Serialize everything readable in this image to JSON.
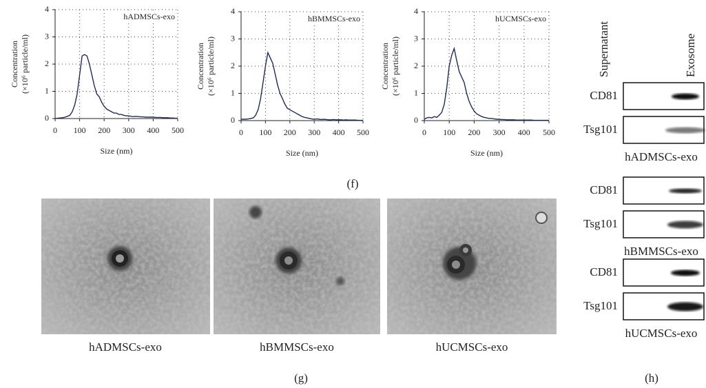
{
  "chart_data": [
    {
      "type": "line",
      "title": "hADMSCs-exo",
      "xlabel": "Size (nm)",
      "ylabel": [
        "Concentration",
        "(×10⁶ particle/ml)"
      ],
      "color": "#1f2a5a",
      "grid": true,
      "x": [
        0,
        10,
        20,
        30,
        40,
        50,
        60,
        70,
        80,
        90,
        100,
        110,
        120,
        130,
        140,
        150,
        160,
        170,
        180,
        190,
        200,
        210,
        220,
        230,
        240,
        250,
        260,
        270,
        280,
        290,
        300,
        310,
        320,
        330,
        340,
        350,
        360,
        370,
        380,
        390,
        400,
        410,
        420,
        430,
        440,
        450,
        460,
        470,
        480,
        490,
        500
      ],
      "values": [
        0,
        0.01,
        0.02,
        0.03,
        0.05,
        0.08,
        0.12,
        0.25,
        0.5,
        0.9,
        1.6,
        2.3,
        2.35,
        2.3,
        2.0,
        1.6,
        1.2,
        0.9,
        0.8,
        0.6,
        0.45,
        0.35,
        0.3,
        0.25,
        0.2,
        0.2,
        0.15,
        0.15,
        0.12,
        0.1,
        0.1,
        0.08,
        0.07,
        0.08,
        0.07,
        0.06,
        0.06,
        0.05,
        0.05,
        0.05,
        0.05,
        0.04,
        0.04,
        0.04,
        0.03,
        0.03,
        0.03,
        0.02,
        0.02,
        0.01,
        0.01
      ],
      "xlim": [
        0,
        500
      ],
      "xticks": [
        0,
        100,
        200,
        300,
        400,
        500
      ],
      "ylim": [
        0,
        4
      ],
      "yticks": [
        0,
        1,
        2,
        3,
        4
      ]
    },
    {
      "type": "line",
      "title": "hBMMSCs-exo",
      "xlabel": "Size (nm)",
      "ylabel": [
        "Concentration",
        "(×10⁶ particle/ml)"
      ],
      "color": "#1f2a5a",
      "grid": true,
      "x": [
        0,
        10,
        20,
        30,
        40,
        50,
        60,
        70,
        80,
        90,
        100,
        110,
        120,
        130,
        140,
        150,
        160,
        170,
        180,
        190,
        200,
        210,
        220,
        230,
        240,
        250,
        260,
        270,
        280,
        290,
        300,
        310,
        320,
        330,
        340,
        350,
        360,
        370,
        380,
        390,
        400,
        410,
        420,
        430,
        440,
        450,
        460,
        470,
        480,
        490,
        500
      ],
      "values": [
        0.05,
        0.05,
        0.05,
        0.06,
        0.08,
        0.1,
        0.2,
        0.4,
        0.8,
        1.4,
        2.0,
        2.5,
        2.3,
        2.1,
        1.7,
        1.3,
        1.0,
        0.8,
        0.6,
        0.45,
        0.4,
        0.35,
        0.3,
        0.25,
        0.2,
        0.15,
        0.12,
        0.1,
        0.08,
        0.06,
        0.05,
        0.06,
        0.05,
        0.04,
        0.05,
        0.04,
        0.03,
        0.03,
        0.04,
        0.03,
        0.03,
        0.03,
        0.02,
        0.03,
        0.02,
        0.02,
        0.02,
        0.02,
        0.01,
        0.01,
        0.01
      ],
      "xlim": [
        0,
        500
      ],
      "xticks": [
        0,
        100,
        200,
        300,
        400,
        500
      ],
      "ylim": [
        0,
        4
      ],
      "yticks": [
        0,
        1,
        2,
        3,
        4
      ]
    },
    {
      "type": "line",
      "title": "hUCMSCs-exo",
      "xlabel": "Size (nm)",
      "ylabel": [
        "Concentration",
        "(×10⁶ particle/ml)"
      ],
      "color": "#1f2a5a",
      "grid": true,
      "x": [
        0,
        10,
        20,
        30,
        40,
        50,
        60,
        70,
        80,
        90,
        100,
        110,
        120,
        130,
        140,
        150,
        160,
        170,
        180,
        190,
        200,
        210,
        220,
        230,
        240,
        250,
        260,
        270,
        280,
        290,
        300,
        310,
        320,
        330,
        340,
        350,
        360,
        370,
        380,
        390,
        400,
        410,
        420,
        430,
        440,
        450,
        460,
        470,
        480,
        490,
        500
      ],
      "values": [
        0.05,
        0.1,
        0.12,
        0.1,
        0.15,
        0.12,
        0.2,
        0.3,
        0.6,
        1.2,
        2.0,
        2.4,
        2.65,
        2.2,
        1.8,
        1.6,
        1.4,
        1.0,
        0.7,
        0.5,
        0.35,
        0.25,
        0.2,
        0.15,
        0.12,
        0.1,
        0.08,
        0.08,
        0.06,
        0.05,
        0.05,
        0.04,
        0.04,
        0.03,
        0.03,
        0.03,
        0.03,
        0.02,
        0.02,
        0.02,
        0.02,
        0.02,
        0.02,
        0.02,
        0.01,
        0.01,
        0.01,
        0.01,
        0.01,
        0.01,
        0.01
      ],
      "xlim": [
        0,
        500
      ],
      "xticks": [
        0,
        100,
        200,
        300,
        400,
        500
      ],
      "ylim": [
        0,
        4
      ],
      "yticks": [
        0,
        1,
        2,
        3,
        4
      ]
    }
  ],
  "panels": {
    "f": "(f)",
    "g": "(g)",
    "h": "(h)"
  },
  "tem": {
    "labels": [
      "hADMSCs-exo",
      "hBMMSCs-exo",
      "hUCMSCs-exo"
    ]
  },
  "blot": {
    "columns": [
      "Supernatant",
      "Exosome"
    ],
    "groups": [
      {
        "name": "hADMSCs-exo",
        "rows": [
          "CD81",
          "Tsg101"
        ]
      },
      {
        "name": "hBMMSCs-exo",
        "rows": [
          "CD81",
          "Tsg101"
        ]
      },
      {
        "name": "hUCMSCs-exo",
        "rows": [
          "CD81",
          "Tsg101"
        ]
      }
    ]
  }
}
